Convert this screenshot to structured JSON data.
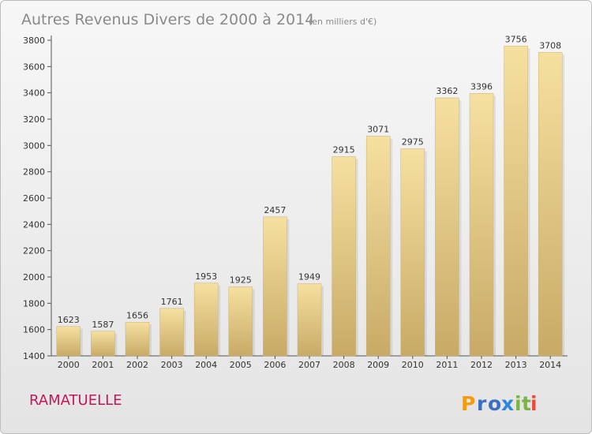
{
  "chart_data": {
    "type": "bar",
    "title": "Autres Revenus Divers de 2000 à 2014",
    "subtitle": "(en milliers d'€)",
    "categories": [
      "2000",
      "2001",
      "2002",
      "2003",
      "2004",
      "2005",
      "2006",
      "2007",
      "2008",
      "2009",
      "2010",
      "2011",
      "2012",
      "2013",
      "2014"
    ],
    "values": [
      1623,
      1587,
      1656,
      1761,
      1953,
      1925,
      2457,
      1949,
      2915,
      3071,
      2975,
      3362,
      3396,
      3756,
      3708
    ],
    "ylim": [
      1400,
      3800
    ],
    "yticks": [
      "1400",
      "1600",
      "1800",
      "2000",
      "2200",
      "2400",
      "2600",
      "2800",
      "3000",
      "3200",
      "3400",
      "3600",
      "3800"
    ],
    "xlabel": "",
    "ylabel": "",
    "grid": false,
    "bar_color": "#e8cf8c"
  },
  "footer": {
    "commune": "RAMATUELLE"
  },
  "logo": {
    "parts": [
      {
        "text": "P",
        "color": "#f39c12"
      },
      {
        "text": "r",
        "color": "#3a6fc4"
      },
      {
        "text": "o",
        "color": "#3a6fc4"
      },
      {
        "text": "x",
        "color": "#2e86de"
      },
      {
        "text": "i",
        "color": "#7cb342"
      },
      {
        "text": "t",
        "color": "#7cb342"
      },
      {
        "text": "i",
        "color": "#e74c3c"
      }
    ]
  }
}
